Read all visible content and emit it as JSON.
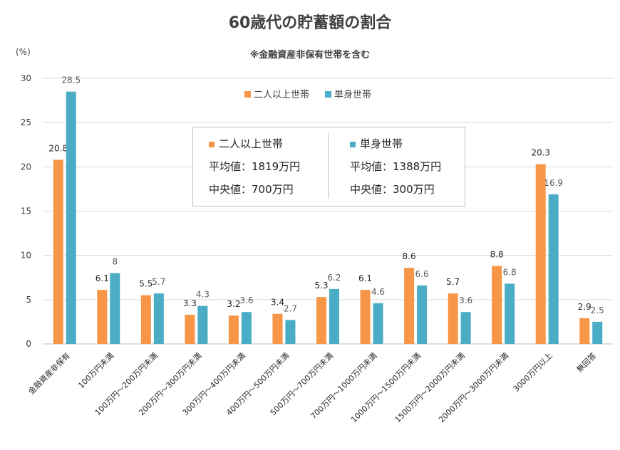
{
  "chart_data": {
    "type": "bar",
    "title": "60歳代の貯蓄額の割合",
    "subtitle": "※金融資産非保有世帯を含む",
    "ylabel": "(%)",
    "ylim": [
      0,
      30
    ],
    "yticks": [
      0,
      5,
      10,
      15,
      20,
      25,
      30
    ],
    "grid": true,
    "legend_position": "top-center",
    "categories": [
      "金融資産非保有",
      "100万円未満",
      "100万円～200万円未満",
      "200万円～300万円未満",
      "300万円～400万円未満",
      "400万円～500万円未満",
      "500万円～700万円未満",
      "700万円～1000万円未満",
      "1000万円～1500万円未満",
      "1500万円～2000万円未満",
      "2000万円～3000万円未満",
      "3000万円以上",
      "無回答"
    ],
    "series": [
      {
        "name": "二人以上世帯",
        "color": "#F79646",
        "values": [
          20.8,
          6.1,
          5.5,
          3.3,
          3.2,
          3.4,
          5.3,
          6.1,
          8.6,
          5.7,
          8.8,
          20.3,
          2.9
        ]
      },
      {
        "name": "単身世帯",
        "color": "#4BACC6",
        "values": [
          28.5,
          8,
          5.7,
          4.3,
          3.6,
          2.7,
          6.2,
          4.6,
          6.6,
          3.6,
          6.8,
          16.9,
          2.5
        ]
      }
    ]
  },
  "info_box": {
    "left": {
      "name": "二人以上世帯",
      "mean": "平均値：1819万円",
      "median": "中央値：700万円"
    },
    "right": {
      "name": "単身世帯",
      "mean": "平均値：1388万円",
      "median": "中央値：300万円"
    }
  }
}
